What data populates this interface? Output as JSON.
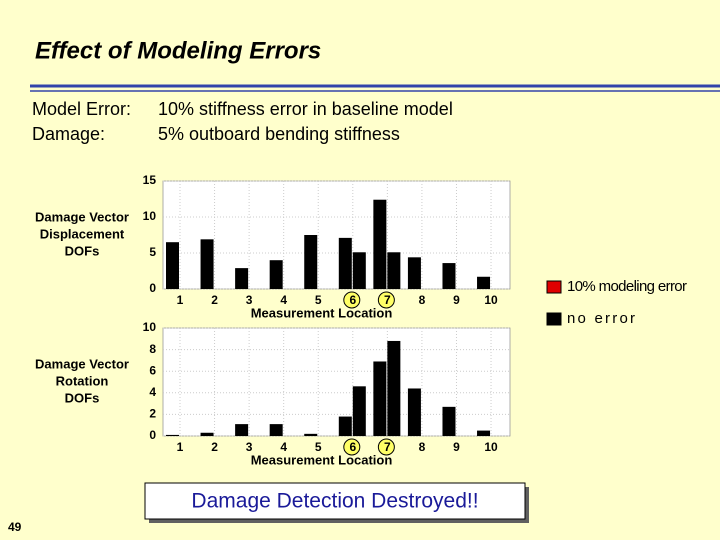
{
  "slide": {
    "title": "Effect of Modeling Errors",
    "lines": [
      [
        "Model Error:",
        "10% stiffness error in baseline model"
      ],
      [
        "Damage:",
        "5% outboard bending stiffness"
      ]
    ],
    "callout": "Damage Detection Destroyed!!",
    "page_number": "49"
  },
  "chart_data": [
    {
      "type": "bar",
      "ylabel": [
        "Damage Vector",
        "Displacement",
        "DOFs"
      ],
      "xlabel": "Measurement Location",
      "categories": [
        "1",
        "2",
        "3",
        "4",
        "5",
        "6",
        "7",
        "8",
        "9",
        "10"
      ],
      "highlighted_categories": [
        "6",
        "7"
      ],
      "series": [
        {
          "name": "10% modeling error",
          "color": "#000000",
          "swatch_color": "#e00000",
          "values": [
            6.5,
            6.9,
            2.9,
            4.0,
            7.5,
            7.1,
            12.4,
            4.4,
            3.6,
            1.7
          ]
        },
        {
          "name": "no error",
          "color": "#000000",
          "swatch_color": "#000000",
          "values": [
            0,
            0,
            0,
            0,
            0,
            5.1,
            5.1,
            0,
            0,
            0
          ]
        }
      ],
      "ylim": [
        0,
        15
      ],
      "yticks": [
        0,
        5,
        10,
        15
      ],
      "grid": true,
      "legend": "right"
    },
    {
      "type": "bar",
      "ylabel": [
        "Damage Vector",
        "Rotation",
        "DOFs"
      ],
      "xlabel": "Measurement Location",
      "categories": [
        "1",
        "2",
        "3",
        "4",
        "5",
        "6",
        "7",
        "8",
        "9",
        "10"
      ],
      "highlighted_categories": [
        "6",
        "7"
      ],
      "series": [
        {
          "name": "10% modeling error",
          "color": "#000000",
          "values": [
            0.1,
            0.3,
            1.1,
            1.1,
            0.2,
            1.8,
            6.9,
            4.4,
            2.7,
            0.5
          ]
        },
        {
          "name": "no error",
          "color": "#000000",
          "values": [
            0,
            0,
            0,
            0,
            0,
            4.6,
            8.8,
            0,
            0,
            0
          ]
        }
      ],
      "ylim": [
        0,
        10
      ],
      "yticks": [
        0,
        2,
        4,
        6,
        8,
        10
      ],
      "grid": true
    }
  ]
}
